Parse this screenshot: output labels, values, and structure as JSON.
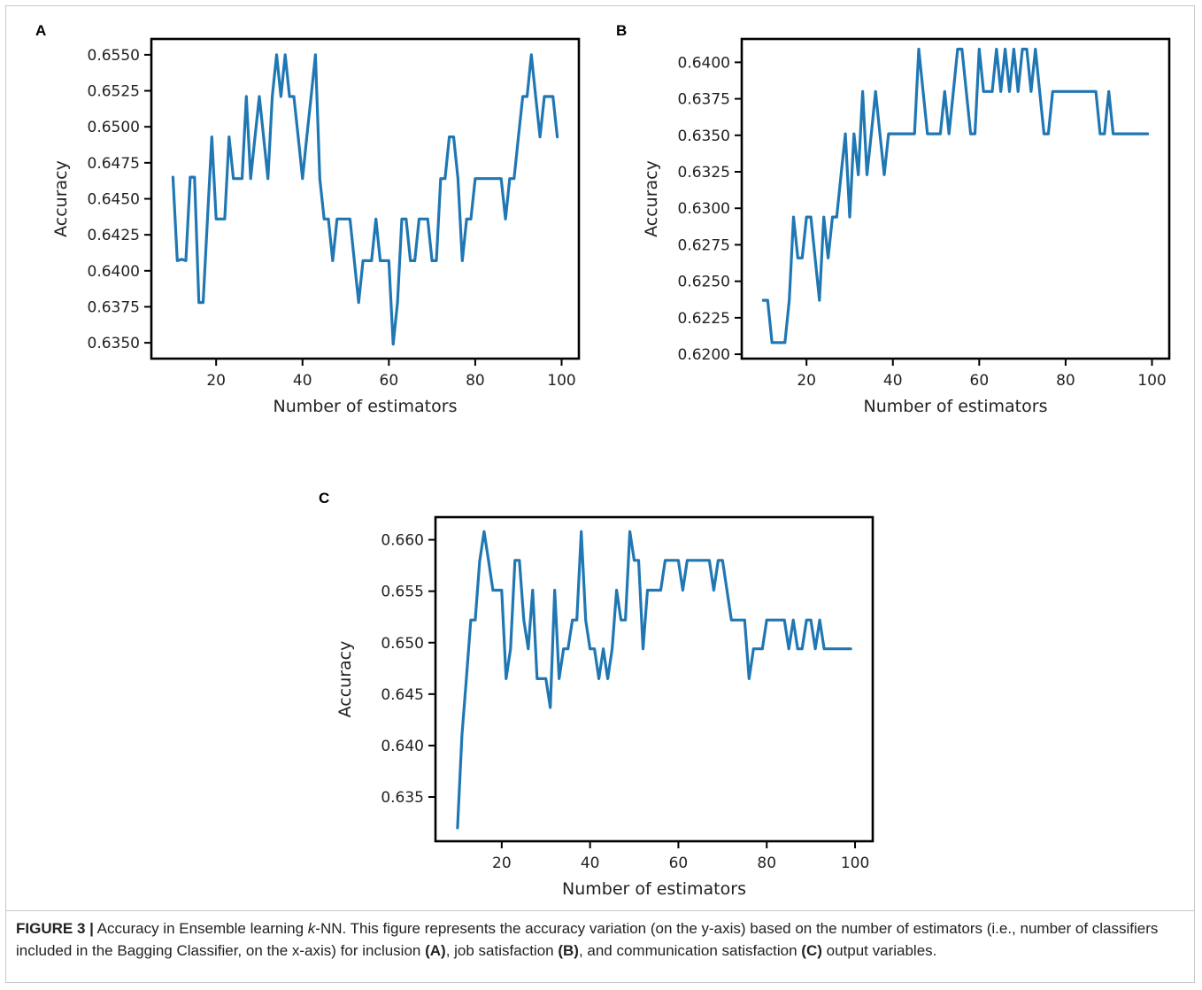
{
  "panels": [
    {
      "label": "A"
    },
    {
      "label": "B"
    },
    {
      "label": "C"
    }
  ],
  "caption": {
    "figure_label": "FIGURE 3 |",
    "text_1": " Accuracy in Ensemble learning ",
    "italic_k": "k",
    "text_2": "-NN. This figure represents the accuracy variation (on the y-axis) based on the number of estimators (i.e., number of classifiers included in the Bagging Classifier, on the x-axis) for inclusion ",
    "ref_a": "(A)",
    "text_3": ", job satisfaction ",
    "ref_b": "(B)",
    "text_4": ", and communication satisfaction ",
    "ref_c": "(C)",
    "text_5": " output variables."
  },
  "colors": {
    "line": "#1f77b4",
    "axes": "#000000"
  },
  "chart_data": [
    {
      "type": "line",
      "panel": "A",
      "xlabel": "Number of estimators",
      "ylabel": "Accuracy",
      "xlim": [
        5,
        104
      ],
      "ylim": [
        0.6339,
        0.6561
      ],
      "xticks": [
        20,
        40,
        60,
        80,
        100
      ],
      "yticks": [
        0.635,
        0.6375,
        0.64,
        0.6425,
        0.645,
        0.6475,
        0.65,
        0.6525,
        0.655
      ],
      "ytick_labels": [
        "0.6350",
        "0.6375",
        "0.6400",
        "0.6425",
        "0.6450",
        "0.6475",
        "0.6500",
        "0.6525",
        "0.6550"
      ],
      "grid": false,
      "x": [
        10,
        11,
        12,
        13,
        14,
        15,
        16,
        17,
        18,
        19,
        20,
        21,
        22,
        23,
        24,
        25,
        26,
        27,
        28,
        29,
        30,
        31,
        32,
        33,
        34,
        35,
        36,
        37,
        38,
        39,
        40,
        41,
        42,
        43,
        44,
        45,
        46,
        47,
        48,
        49,
        50,
        51,
        52,
        53,
        54,
        55,
        56,
        57,
        58,
        59,
        60,
        61,
        62,
        63,
        64,
        65,
        66,
        67,
        68,
        69,
        70,
        71,
        72,
        73,
        74,
        75,
        76,
        77,
        78,
        79,
        80,
        81,
        82,
        83,
        84,
        85,
        86,
        87,
        88,
        89,
        90,
        91,
        92,
        93,
        94,
        95,
        96,
        97,
        98,
        99
      ],
      "y": [
        0.6465,
        0.6407,
        0.6408,
        0.6407,
        0.6465,
        0.6465,
        0.6378,
        0.6378,
        0.6436,
        0.6493,
        0.6436,
        0.6436,
        0.6436,
        0.6493,
        0.6464,
        0.6464,
        0.6464,
        0.6521,
        0.6464,
        0.6493,
        0.6521,
        0.6493,
        0.6464,
        0.6521,
        0.655,
        0.6521,
        0.655,
        0.6521,
        0.6521,
        0.6493,
        0.6464,
        0.6493,
        0.6521,
        0.655,
        0.6464,
        0.6436,
        0.6436,
        0.6407,
        0.6436,
        0.6436,
        0.6436,
        0.6436,
        0.6407,
        0.6378,
        0.6407,
        0.6407,
        0.6407,
        0.6436,
        0.6407,
        0.6407,
        0.6407,
        0.6349,
        0.6378,
        0.6436,
        0.6436,
        0.6407,
        0.6407,
        0.6436,
        0.6436,
        0.6436,
        0.6407,
        0.6407,
        0.6464,
        0.6464,
        0.6493,
        0.6493,
        0.6464,
        0.6407,
        0.6436,
        0.6436,
        0.6464,
        0.6464,
        0.6464,
        0.6464,
        0.6464,
        0.6464,
        0.6464,
        0.6436,
        0.6464,
        0.6464,
        0.6493,
        0.6521,
        0.6521,
        0.655,
        0.6521,
        0.6493,
        0.6521,
        0.6521,
        0.6521,
        0.6493
      ]
    },
    {
      "type": "line",
      "panel": "B",
      "xlabel": "Number of estimators",
      "ylabel": "Accuracy",
      "xlim": [
        5,
        104
      ],
      "ylim": [
        0.6197,
        0.6416
      ],
      "xticks": [
        20,
        40,
        60,
        80,
        100
      ],
      "yticks": [
        0.62,
        0.6225,
        0.625,
        0.6275,
        0.63,
        0.6325,
        0.635,
        0.6375,
        0.64
      ],
      "ytick_labels": [
        "0.6200",
        "0.6225",
        "0.6250",
        "0.6275",
        "0.6300",
        "0.6325",
        "0.6350",
        "0.6375",
        "0.6400"
      ],
      "grid": false,
      "x": [
        10,
        11,
        12,
        13,
        14,
        15,
        16,
        17,
        18,
        19,
        20,
        21,
        22,
        23,
        24,
        25,
        26,
        27,
        28,
        29,
        30,
        31,
        32,
        33,
        34,
        35,
        36,
        37,
        38,
        39,
        40,
        41,
        42,
        43,
        44,
        45,
        46,
        47,
        48,
        49,
        50,
        51,
        52,
        53,
        54,
        55,
        56,
        57,
        58,
        59,
        60,
        61,
        62,
        63,
        64,
        65,
        66,
        67,
        68,
        69,
        70,
        71,
        72,
        73,
        74,
        75,
        76,
        77,
        78,
        79,
        80,
        81,
        82,
        83,
        84,
        85,
        86,
        87,
        88,
        89,
        90,
        91,
        92,
        93,
        94,
        95,
        96,
        97,
        98,
        99
      ],
      "y": [
        0.6237,
        0.6237,
        0.6208,
        0.6208,
        0.6208,
        0.6208,
        0.6237,
        0.6294,
        0.6266,
        0.6266,
        0.6294,
        0.6294,
        0.6266,
        0.6237,
        0.6294,
        0.6266,
        0.6294,
        0.6294,
        0.6323,
        0.6351,
        0.6294,
        0.6351,
        0.6323,
        0.638,
        0.6323,
        0.6351,
        0.638,
        0.6351,
        0.6323,
        0.6351,
        0.6351,
        0.6351,
        0.6351,
        0.6351,
        0.6351,
        0.6351,
        0.6409,
        0.638,
        0.6351,
        0.6351,
        0.6351,
        0.6351,
        0.638,
        0.6351,
        0.638,
        0.6409,
        0.6409,
        0.638,
        0.6351,
        0.6351,
        0.6409,
        0.638,
        0.638,
        0.638,
        0.6409,
        0.638,
        0.6409,
        0.638,
        0.6409,
        0.638,
        0.6409,
        0.6409,
        0.638,
        0.6409,
        0.638,
        0.6351,
        0.6351,
        0.638,
        0.638,
        0.638,
        0.638,
        0.638,
        0.638,
        0.638,
        0.638,
        0.638,
        0.638,
        0.638,
        0.6351,
        0.6351,
        0.638,
        0.6351,
        0.6351,
        0.6351,
        0.6351,
        0.6351,
        0.6351,
        0.6351,
        0.6351,
        0.6351
      ]
    },
    {
      "type": "line",
      "panel": "C",
      "xlabel": "Number of estimators",
      "ylabel": "Accuracy",
      "xlim": [
        5,
        104
      ],
      "ylim": [
        0.6307,
        0.6622
      ],
      "xticks": [
        20,
        40,
        60,
        80,
        100
      ],
      "yticks": [
        0.635,
        0.64,
        0.645,
        0.65,
        0.655,
        0.66
      ],
      "ytick_labels": [
        "0.635",
        "0.640",
        "0.645",
        "0.650",
        "0.655",
        "0.660"
      ],
      "grid": false,
      "x": [
        10,
        11,
        12,
        13,
        14,
        15,
        16,
        17,
        18,
        19,
        20,
        21,
        22,
        23,
        24,
        25,
        26,
        27,
        28,
        29,
        30,
        31,
        32,
        33,
        34,
        35,
        36,
        37,
        38,
        39,
        40,
        41,
        42,
        43,
        44,
        45,
        46,
        47,
        48,
        49,
        50,
        51,
        52,
        53,
        54,
        55,
        56,
        57,
        58,
        59,
        60,
        61,
        62,
        63,
        64,
        65,
        66,
        67,
        68,
        69,
        70,
        71,
        72,
        73,
        74,
        75,
        76,
        77,
        78,
        79,
        80,
        81,
        82,
        83,
        84,
        85,
        86,
        87,
        88,
        89,
        90,
        91,
        92,
        93,
        94,
        95,
        96,
        97,
        98,
        99
      ],
      "y": [
        0.632,
        0.641,
        0.6465,
        0.6522,
        0.6522,
        0.6579,
        0.6608,
        0.658,
        0.6551,
        0.6551,
        0.6551,
        0.6465,
        0.6494,
        0.658,
        0.658,
        0.6522,
        0.6494,
        0.6551,
        0.6465,
        0.6465,
        0.6465,
        0.6437,
        0.6551,
        0.6465,
        0.6494,
        0.6494,
        0.6522,
        0.6522,
        0.6608,
        0.6522,
        0.6494,
        0.6494,
        0.6465,
        0.6494,
        0.6465,
        0.6494,
        0.6551,
        0.6522,
        0.6522,
        0.6608,
        0.658,
        0.658,
        0.6494,
        0.6551,
        0.6551,
        0.6551,
        0.6551,
        0.658,
        0.658,
        0.658,
        0.658,
        0.6551,
        0.658,
        0.658,
        0.658,
        0.658,
        0.658,
        0.658,
        0.6551,
        0.658,
        0.658,
        0.6551,
        0.6522,
        0.6522,
        0.6522,
        0.6522,
        0.6465,
        0.6494,
        0.6494,
        0.6494,
        0.6522,
        0.6522,
        0.6522,
        0.6522,
        0.6522,
        0.6494,
        0.6522,
        0.6494,
        0.6494,
        0.6522,
        0.6522,
        0.6494,
        0.6522,
        0.6494,
        0.6494,
        0.6494,
        0.6494,
        0.6494,
        0.6494,
        0.6494
      ]
    }
  ]
}
